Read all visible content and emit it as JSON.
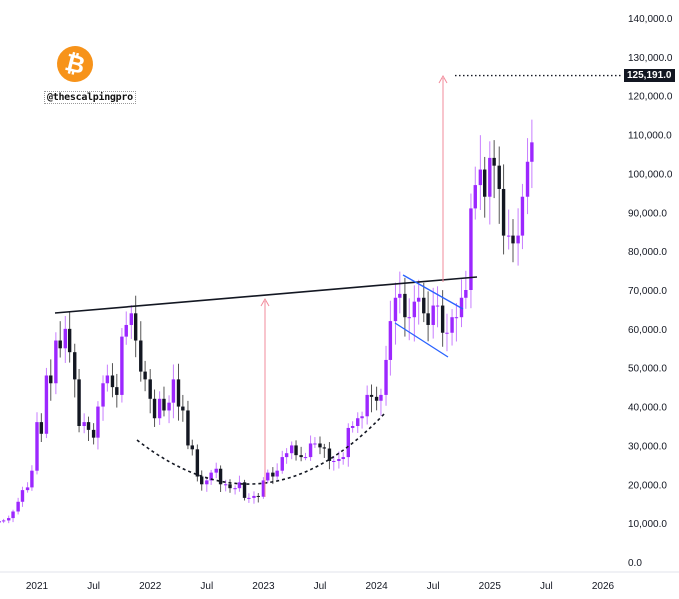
{
  "watermark": {
    "logo_symbol": "₿",
    "handle": "@thescalpingpro",
    "logo_color": "#f7931a"
  },
  "chart_data": {
    "type": "candlestick",
    "title": "",
    "ylim": [
      0,
      140000
    ],
    "y_ticks": [
      "0.0",
      "10,000.0",
      "20,000.0",
      "30,000.0",
      "40,000.0",
      "50,000.0",
      "60,000.0",
      "70,000.0",
      "80,000.0",
      "90,000.0",
      "100,000.0",
      "110,000.0",
      "120,000.0",
      "130,000.0",
      "140,000.0"
    ],
    "x_ticks": [
      "2021",
      "Jul",
      "2022",
      "Jul",
      "2023",
      "Jul",
      "2024",
      "Jul",
      "2025",
      "Jul",
      "2026"
    ],
    "target_price": 125191,
    "target_label": "125,191.0",
    "colors": {
      "up": "#9c27ff",
      "down": "#131722",
      "trendline": "#131722",
      "arrow": "#f28b9b",
      "channel": "#2962ff"
    },
    "grid": false,
    "dates": [
      "2020-09-01",
      "2020-09-15",
      "2020-10-01",
      "2020-10-15",
      "2020-11-01",
      "2020-11-15",
      "2020-12-01",
      "2020-12-15",
      "2021-01-01",
      "2021-01-15",
      "2021-02-01",
      "2021-02-15",
      "2021-03-01",
      "2021-03-15",
      "2021-04-01",
      "2021-04-15",
      "2021-05-01",
      "2021-05-15",
      "2021-06-01",
      "2021-06-15",
      "2021-07-01",
      "2021-07-15",
      "2021-08-01",
      "2021-08-15",
      "2021-09-01",
      "2021-09-15",
      "2021-10-01",
      "2021-10-15",
      "2021-11-01",
      "2021-11-15",
      "2021-12-01",
      "2021-12-15",
      "2022-01-01",
      "2022-01-15",
      "2022-02-01",
      "2022-02-15",
      "2022-03-01",
      "2022-03-15",
      "2022-04-01",
      "2022-04-15",
      "2022-05-01",
      "2022-05-15",
      "2022-06-01",
      "2022-06-15",
      "2022-07-01",
      "2022-07-15",
      "2022-08-01",
      "2022-08-15",
      "2022-09-01",
      "2022-09-15",
      "2022-10-01",
      "2022-10-15",
      "2022-11-01",
      "2022-11-15",
      "2022-12-01",
      "2022-12-15",
      "2023-01-01",
      "2023-01-15",
      "2023-02-01",
      "2023-02-15",
      "2023-03-01",
      "2023-03-15",
      "2023-04-01",
      "2023-04-15",
      "2023-05-01",
      "2023-05-15",
      "2023-06-01",
      "2023-06-15",
      "2023-07-01",
      "2023-07-15",
      "2023-08-01",
      "2023-08-15",
      "2023-09-01",
      "2023-09-15",
      "2023-10-01",
      "2023-10-15",
      "2023-11-01",
      "2023-11-15",
      "2023-12-01",
      "2023-12-15",
      "2024-01-01",
      "2024-01-15",
      "2024-02-01",
      "2024-02-15",
      "2024-03-01",
      "2024-03-15",
      "2024-04-01",
      "2024-04-15",
      "2024-05-01",
      "2024-05-15",
      "2024-06-01",
      "2024-06-15",
      "2024-07-01",
      "2024-07-15",
      "2024-08-01",
      "2024-08-15",
      "2024-09-01",
      "2024-09-15",
      "2024-10-01",
      "2024-10-15",
      "2024-11-01",
      "2024-11-15",
      "2024-12-01",
      "2024-12-15",
      "2025-01-01",
      "2025-01-15",
      "2025-02-01",
      "2025-02-15",
      "2025-03-01",
      "2025-03-15",
      "2025-04-01",
      "2025-04-15",
      "2025-05-01",
      "2025-05-15"
    ],
    "close": [
      10500,
      10700,
      11300,
      13000,
      15500,
      18500,
      19200,
      23500,
      36000,
      33000,
      48000,
      46000,
      57000,
      55000,
      60000,
      54000,
      47000,
      35000,
      36000,
      34000,
      32000,
      40000,
      46000,
      48000,
      45000,
      43000,
      58000,
      61000,
      64000,
      57000,
      49000,
      47000,
      42000,
      37000,
      42000,
      39000,
      41000,
      47000,
      40000,
      39000,
      30000,
      29000,
      22000,
      20000,
      21000,
      23000,
      24000,
      20000,
      20000,
      19000,
      19000,
      20500,
      16500,
      16500,
      17000,
      16800,
      21000,
      23000,
      22000,
      23500,
      27000,
      28000,
      30000,
      27500,
      27000,
      27000,
      30500,
      30500,
      29500,
      29200,
      26000,
      26000,
      26500,
      27000,
      34500,
      35000,
      37000,
      37500,
      43000,
      42500,
      41500,
      43000,
      52000,
      62000,
      68000,
      69000,
      63000,
      63000,
      67000,
      68000,
      64000,
      61000,
      66000,
      66000,
      59000,
      59000,
      63000,
      63000,
      68000,
      70000,
      91000,
      97000,
      101000,
      94000,
      104000,
      102000,
      96000,
      84000,
      84000,
      82000,
      84000,
      94000,
      103000,
      108000
    ]
  }
}
